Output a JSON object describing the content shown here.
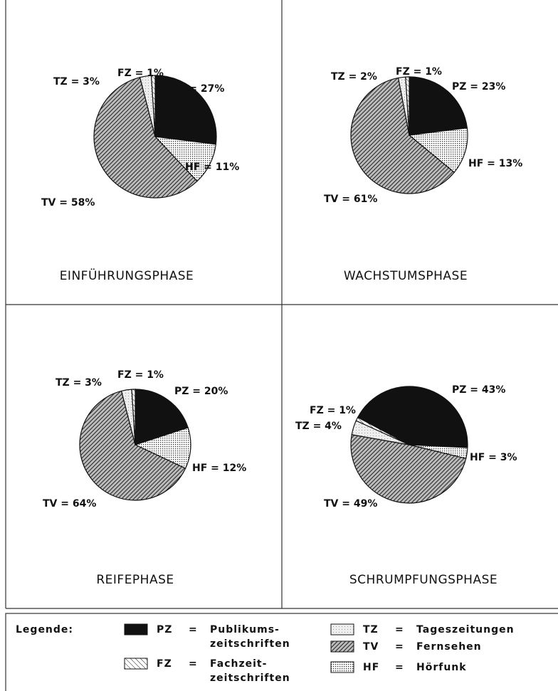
{
  "chart_data": [
    {
      "type": "pie",
      "title": "EINFÜHRUNGSPHASE",
      "categories": [
        "PZ",
        "HF",
        "TV",
        "TZ",
        "FZ"
      ],
      "values": [
        27,
        11,
        58,
        3,
        1
      ],
      "value_labels": [
        "PZ = 27%",
        "HF = 11%",
        "TV = 58%",
        "TZ = 3%",
        "FZ = 1%"
      ]
    },
    {
      "type": "pie",
      "title": "WACHSTUMSPHASE",
      "categories": [
        "PZ",
        "HF",
        "TV",
        "TZ",
        "FZ"
      ],
      "values": [
        23,
        13,
        61,
        2,
        1
      ],
      "value_labels": [
        "PZ = 23%",
        "HF = 13%",
        "TV = 61%",
        "TZ = 2%",
        "FZ = 1%"
      ]
    },
    {
      "type": "pie",
      "title": "REIFEPHASE",
      "categories": [
        "PZ",
        "HF",
        "TV",
        "TZ",
        "FZ"
      ],
      "values": [
        20,
        12,
        64,
        3,
        1
      ],
      "value_labels": [
        "PZ = 20%",
        "HF = 12%",
        "TV = 64%",
        "TZ = 3%",
        "FZ = 1%"
      ]
    },
    {
      "type": "pie",
      "title": "SCHRUMPFUNGSPHASE",
      "categories": [
        "PZ",
        "HF",
        "TV",
        "TZ",
        "FZ"
      ],
      "values": [
        43,
        3,
        49,
        4,
        1
      ],
      "value_labels": [
        "PZ = 43%",
        "HF = 3%",
        "TV = 49%",
        "TZ = 4%",
        "FZ = 1%"
      ]
    }
  ],
  "legend": {
    "title": "Legende:",
    "items": [
      {
        "code": "PZ",
        "sep": "=",
        "lines": [
          "Publikums-",
          "zeitschriften"
        ]
      },
      {
        "code": "HF",
        "sep": "=",
        "lines": [
          "Hörfunk"
        ]
      },
      {
        "code": "TV",
        "sep": "=",
        "lines": [
          "Fernsehen"
        ]
      },
      {
        "code": "TZ",
        "sep": "=",
        "lines": [
          "Tageszeitungen"
        ]
      },
      {
        "code": "FZ",
        "sep": "=",
        "lines": [
          "Fachzeit-",
          "zeitschriften"
        ]
      }
    ]
  }
}
